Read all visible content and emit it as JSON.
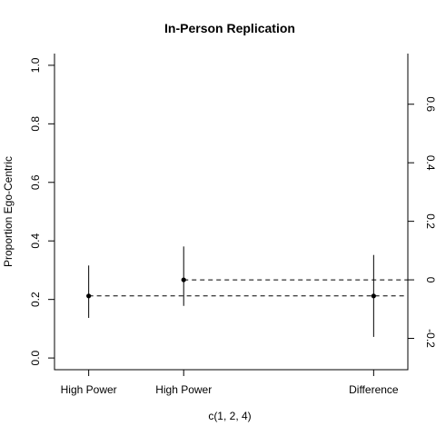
{
  "chart_data": {
    "type": "scatter",
    "title": "In-Person Replication",
    "xlabel": "c(1, 2, 4)",
    "ylabel": "Proportion Ego-Centric",
    "xlim": [
      0.64,
      4.36
    ],
    "ylim": [
      -0.04,
      1.04
    ],
    "x_ticks": [
      1,
      2,
      4
    ],
    "x_tick_labels": [
      "High Power",
      "High Power",
      "Difference"
    ],
    "y_ticks": [
      0.0,
      0.2,
      0.4,
      0.6,
      0.8,
      1.0
    ],
    "y_tick_labels": [
      "0.0",
      "0.2",
      "0.4",
      "0.6",
      "0.8",
      "1.0"
    ],
    "right_axis": {
      "offset": 0.267,
      "ticks": [
        -0.2,
        0.0,
        0.2,
        0.4,
        0.6
      ],
      "tick_labels": [
        "-0.2",
        "0",
        "0.2",
        "0.4",
        "0.6"
      ]
    },
    "points": [
      {
        "x": 1,
        "y": 0.212,
        "lower": 0.137,
        "upper": 0.316
      },
      {
        "x": 2,
        "y": 0.267,
        "lower": 0.178,
        "upper": 0.381
      },
      {
        "x": 4,
        "y": 0.212,
        "lower": 0.072,
        "upper": 0.352
      }
    ],
    "reference_lines": [
      {
        "y": 0.212,
        "from_x": 1,
        "to_x": 4.36,
        "style": "dashed"
      },
      {
        "y": 0.267,
        "from_x": 2,
        "to_x": 4.36,
        "style": "dashed"
      }
    ],
    "grid": false,
    "legend": "none"
  }
}
